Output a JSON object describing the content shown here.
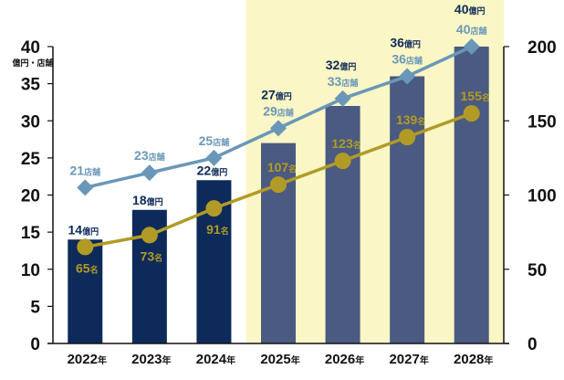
{
  "chart_data": {
    "type": "bar",
    "categories": [
      "2022",
      "2023",
      "2024",
      "2025",
      "2026",
      "2027",
      "2028"
    ],
    "category_suffix": "年",
    "ylabel": "億円・店舗",
    "ylim": [
      0,
      40
    ],
    "y2lim": [
      0,
      200
    ],
    "y_ticks": [
      0,
      5,
      10,
      15,
      20,
      25,
      30,
      35,
      40
    ],
    "y2_ticks": [
      0,
      50,
      100,
      150,
      200
    ],
    "forecast_from": "2025",
    "colors": {
      "bar_actual": "#0d2a5a",
      "bar_forecast": "#4a5a80",
      "forecast_bg": "#fbf6c5",
      "stores_line": "#6a97b8",
      "staff_line": "#b19b26",
      "axis": "#111111"
    },
    "series": [
      {
        "type": "bar",
        "axis": "left",
        "unit": "億円",
        "values": [
          14,
          18,
          22,
          27,
          32,
          36,
          40
        ]
      },
      {
        "type": "line",
        "marker": "diamond",
        "axis": "left",
        "unit": "店舗",
        "values": [
          21,
          23,
          25,
          29,
          33,
          36,
          40
        ]
      },
      {
        "type": "line",
        "marker": "circle",
        "axis": "right",
        "unit": "名",
        "values": [
          65,
          73,
          91,
          107,
          123,
          139,
          155
        ]
      }
    ]
  }
}
